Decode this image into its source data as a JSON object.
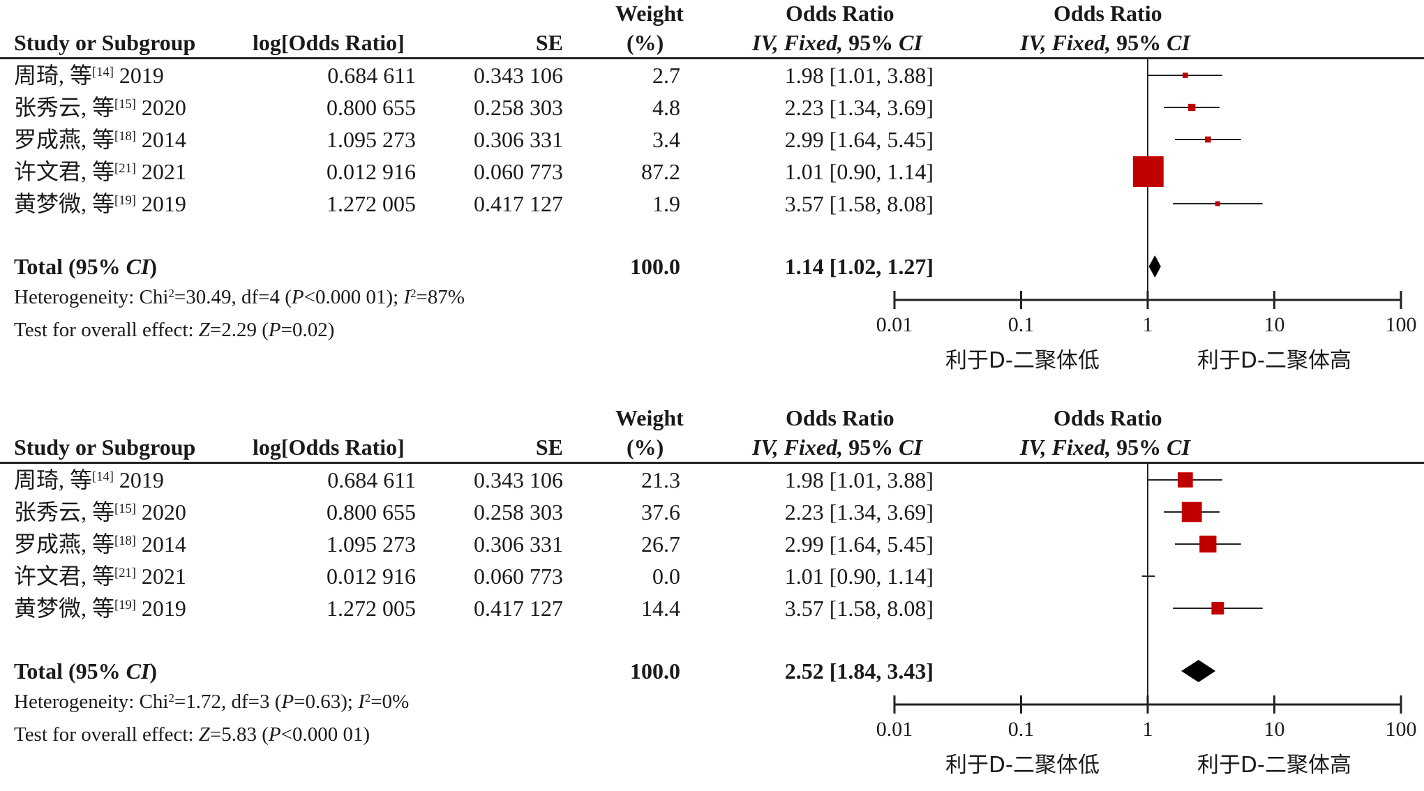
{
  "headers": {
    "study": "Study or Subgroup",
    "log_or": "log[Odds Ratio]",
    "se": "SE",
    "weight_line1": "Weight",
    "weight_line2": "(%)",
    "or_line1": "Odds Ratio",
    "or_line2_italic": "IV, Fixed,",
    "or_line2_rest": " 95% ",
    "or_line2_ci": "CI",
    "plot_line1": "Odds Ratio",
    "plot_line2_italic": "IV, Fixed,",
    "plot_line2_rest": " 95% ",
    "plot_line2_ci": "CI"
  },
  "axis_labels": {
    "left": "利于D-二聚体低",
    "right": "利于D-二聚体高"
  },
  "colors": {
    "marker": "#c00000",
    "diamond": "#000000",
    "line": "#222222"
  },
  "panels": [
    {
      "studies": [
        {
          "name": "周琦, 等",
          "ref": "[14]",
          "year": "2019",
          "log_or": "0.684 611",
          "se": "0.343 106",
          "weight": "2.7",
          "or_text": "1.98 [1.01, 3.88]"
        },
        {
          "name": "张秀云, 等",
          "ref": "[15]",
          "year": "2020",
          "log_or": "0.800 655",
          "se": "0.258 303",
          "weight": "4.8",
          "or_text": "2.23 [1.34, 3.69]"
        },
        {
          "name": "罗成燕, 等",
          "ref": "[18]",
          "year": "2014",
          "log_or": "1.095 273",
          "se": "0.306 331",
          "weight": "3.4",
          "or_text": "2.99 [1.64, 5.45]"
        },
        {
          "name": "许文君, 等",
          "ref": "[21]",
          "year": "2021",
          "log_or": "0.012 916",
          "se": "0.060 773",
          "weight": "87.2",
          "or_text": "1.01 [0.90, 1.14]"
        },
        {
          "name": "黄梦微, 等",
          "ref": "[19]",
          "year": "2019",
          "log_or": "1.272 005",
          "se": "0.417 127",
          "weight": "1.9",
          "or_text": "3.57 [1.58, 8.08]"
        }
      ],
      "total": {
        "label": "Total (95% ",
        "label_ci": "CI",
        "label_close": ")",
        "weight": "100.0",
        "or_text": "1.14 [1.02, 1.27]"
      },
      "heterogeneity": {
        "prefix": "Heterogeneity: Chi",
        "sup": "2",
        "chi": "=30.49, df=4 (",
        "p_label": "P",
        "p_value": "<0.000 01); ",
        "i_label": "I",
        "i_sup": "2",
        "i_value": "=87%"
      },
      "overall": {
        "prefix": "Test for overall effect: ",
        "z_label": "Z",
        "z_value": "=2.29 (",
        "p_label": "P",
        "p_value": "=0.02)"
      }
    },
    {
      "studies": [
        {
          "name": "周琦, 等",
          "ref": "[14]",
          "year": "2019",
          "log_or": "0.684 611",
          "se": "0.343 106",
          "weight": "21.3",
          "or_text": "1.98 [1.01, 3.88]"
        },
        {
          "name": "张秀云, 等",
          "ref": "[15]",
          "year": "2020",
          "log_or": "0.800 655",
          "se": "0.258 303",
          "weight": "37.6",
          "or_text": "2.23 [1.34, 3.69]"
        },
        {
          "name": "罗成燕, 等",
          "ref": "[18]",
          "year": "2014",
          "log_or": "1.095 273",
          "se": "0.306 331",
          "weight": "26.7",
          "or_text": "2.99 [1.64, 5.45]"
        },
        {
          "name": "许文君, 等",
          "ref": "[21]",
          "year": "2021",
          "log_or": "0.012 916",
          "se": "0.060 773",
          "weight": "0.0",
          "or_text": "1.01 [0.90, 1.14]"
        },
        {
          "name": "黄梦微, 等",
          "ref": "[19]",
          "year": "2019",
          "log_or": "1.272 005",
          "se": "0.417 127",
          "weight": "14.4",
          "or_text": "3.57 [1.58, 8.08]"
        }
      ],
      "total": {
        "label": "Total (95% ",
        "label_ci": "CI",
        "label_close": ")",
        "weight": "100.0",
        "or_text": "2.52 [1.84, 3.43]"
      },
      "heterogeneity": {
        "prefix": "Heterogeneity: Chi",
        "sup": "2",
        "chi": "=1.72, df=3 (",
        "p_label": "P",
        "p_value": "=0.63); ",
        "i_label": "I",
        "i_sup": "2",
        "i_value": "=0%"
      },
      "overall": {
        "prefix": "Test for overall effect: ",
        "z_label": "Z",
        "z_value": "=5.83 (",
        "p_label": "P",
        "p_value": "<0.000 01)"
      }
    }
  ],
  "chart_data": [
    {
      "type": "scatter",
      "subtype": "forest",
      "x_scale": "log",
      "xlim": [
        0.01,
        100
      ],
      "ticks": [
        "0.01",
        "0.1",
        "1",
        "10",
        "100"
      ],
      "tick_values": [
        0.01,
        0.1,
        1,
        10,
        100
      ],
      "reference_line": 1,
      "xlabel_left": "利于D-二聚体低",
      "xlabel_right": "利于D-二聚体高",
      "points": [
        {
          "or": 1.98,
          "lo": 1.01,
          "hi": 3.88,
          "weight": 2.7
        },
        {
          "or": 2.23,
          "lo": 1.34,
          "hi": 3.69,
          "weight": 4.8
        },
        {
          "or": 2.99,
          "lo": 1.64,
          "hi": 5.45,
          "weight": 3.4
        },
        {
          "or": 1.01,
          "lo": 0.9,
          "hi": 1.14,
          "weight": 87.2
        },
        {
          "or": 3.57,
          "lo": 1.58,
          "hi": 8.08,
          "weight": 1.9
        }
      ],
      "pooled": {
        "or": 1.14,
        "lo": 1.02,
        "hi": 1.27
      }
    },
    {
      "type": "scatter",
      "subtype": "forest",
      "x_scale": "log",
      "xlim": [
        0.01,
        100
      ],
      "ticks": [
        "0.01",
        "0.1",
        "1",
        "10",
        "100"
      ],
      "tick_values": [
        0.01,
        0.1,
        1,
        10,
        100
      ],
      "reference_line": 1,
      "xlabel_left": "利于D-二聚体低",
      "xlabel_right": "利于D-二聚体高",
      "points": [
        {
          "or": 1.98,
          "lo": 1.01,
          "hi": 3.88,
          "weight": 21.3
        },
        {
          "or": 2.23,
          "lo": 1.34,
          "hi": 3.69,
          "weight": 37.6
        },
        {
          "or": 2.99,
          "lo": 1.64,
          "hi": 5.45,
          "weight": 26.7
        },
        {
          "or": 1.01,
          "lo": 0.9,
          "hi": 1.14,
          "weight": 0.0
        },
        {
          "or": 3.57,
          "lo": 1.58,
          "hi": 8.08,
          "weight": 14.4
        }
      ],
      "pooled": {
        "or": 2.52,
        "lo": 1.84,
        "hi": 3.43
      }
    }
  ]
}
